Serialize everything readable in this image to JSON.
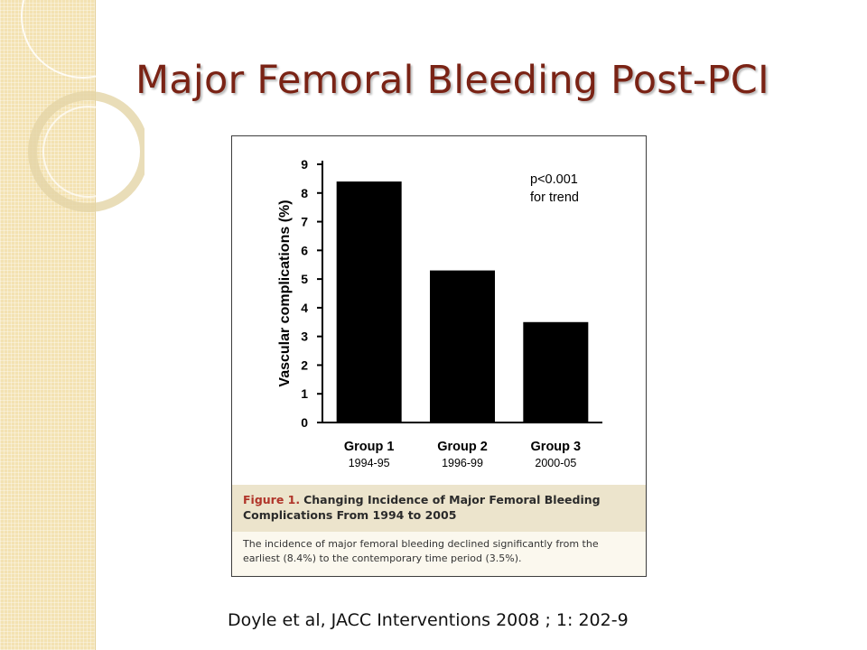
{
  "slide": {
    "title": "Major Femoral Bleeding Post-PCI",
    "citation": "Doyle et al, JACC Interventions 2008 ; 1: 202-9"
  },
  "figure": {
    "label": "Figure 1.",
    "title": "Changing Incidence of Major Femoral Bleeding Complications From 1994 to 2005",
    "description": "The incidence of major femoral bleeding declined significantly from the earliest (8.4%) to the contemporary time period (3.5%)."
  },
  "chart_data": {
    "type": "bar",
    "categories": [
      "Group 1",
      "Group 2",
      "Group 3"
    ],
    "category_sublabels": [
      "1994-95",
      "1996-99",
      "2000-05"
    ],
    "values": [
      8.4,
      5.3,
      3.5
    ],
    "ylabel": "Vascular complications (%)",
    "xlabel": "",
    "ylim": [
      0,
      9
    ],
    "yticks": [
      0,
      1,
      2,
      3,
      4,
      5,
      6,
      7,
      8,
      9
    ],
    "annotation": [
      "p<0.001",
      "for trend"
    ],
    "bar_color": "#000000",
    "grid": false
  },
  "colors": {
    "title": "#7a2315",
    "figure_label": "#b0352a",
    "caption_head_bg": "#ece4cc",
    "side_band": "#f3e2b2"
  }
}
